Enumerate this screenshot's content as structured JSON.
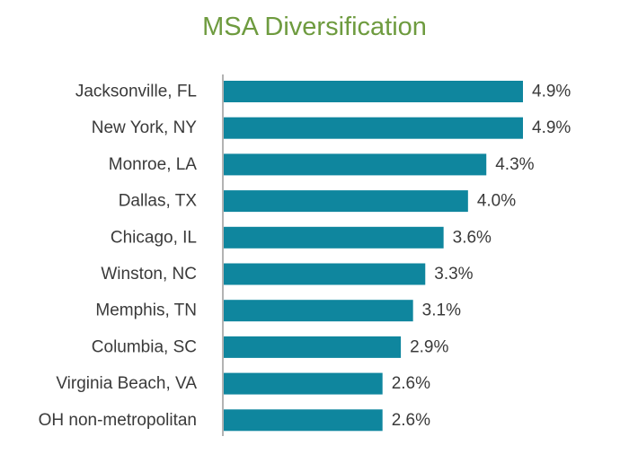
{
  "chart_data": {
    "type": "bar",
    "orientation": "horizontal",
    "title": "MSA Diversification",
    "categories": [
      "Jacksonville, FL",
      "New York, NY",
      "Monroe, LA",
      "Dallas, TX",
      "Chicago, IL",
      "Winston, NC",
      "Memphis, TN",
      "Columbia, SC",
      "Virginia Beach, VA",
      "OH non-metropolitan"
    ],
    "values": [
      4.9,
      4.9,
      4.3,
      4.0,
      3.6,
      3.3,
      3.1,
      2.9,
      2.6,
      2.6
    ],
    "value_labels": [
      "4.9%",
      "4.9%",
      "4.3%",
      "4.0%",
      "3.6%",
      "3.3%",
      "3.1%",
      "2.9%",
      "2.6%",
      "2.6%"
    ],
    "xlim": [
      0,
      4.9
    ],
    "grid": false,
    "legend": "none",
    "colors": {
      "bar": "#0f869e",
      "title": "#6e9b3f",
      "text": "#3a3a3a",
      "axis": "#9a9a9a"
    }
  }
}
